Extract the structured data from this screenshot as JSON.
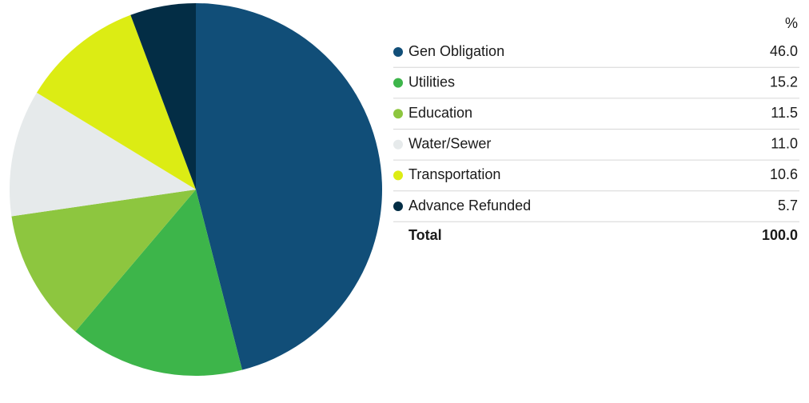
{
  "chart_data": {
    "type": "pie",
    "categories": [
      "Gen Obligation",
      "Utilities",
      "Education",
      "Water/Sewer",
      "Transportation",
      "Advance Refunded"
    ],
    "values": [
      46.0,
      15.2,
      11.5,
      11.0,
      10.6,
      5.7
    ],
    "value_labels": [
      "46.0",
      "15.2",
      "11.5",
      "11.0",
      "10.6",
      "5.7"
    ],
    "colors": [
      "#114e78",
      "#3db54a",
      "#8dc63f",
      "#e6eaeb",
      "#dcec14",
      "#032d45"
    ],
    "value_header": "%",
    "total_name": "Total",
    "total": {
      "value": 100,
      "label": "100.0"
    }
  }
}
